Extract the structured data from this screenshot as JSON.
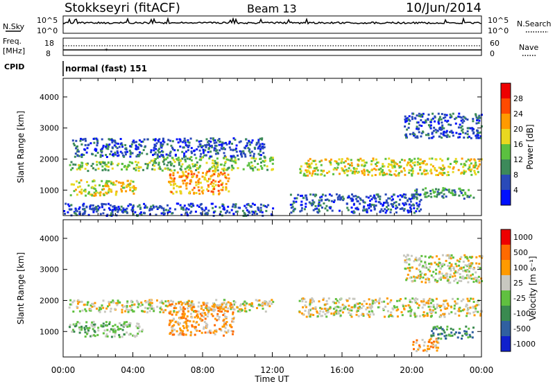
{
  "header": {
    "station": "Stokkseyri (fitACF)",
    "beam": "Beam 13",
    "date": "10/Jun/2014"
  },
  "strip_labels": {
    "nsky": "N.Sky",
    "nsky_ticks": [
      "10^5",
      "10^0"
    ],
    "nsearch": "N.Search",
    "nsearch_ticks": [
      "10^5",
      "10^0"
    ],
    "freq_line1": "Freq.",
    "freq_line2": "[MHz]",
    "freq_ticks": [
      "18",
      "8"
    ],
    "nave": "Nave",
    "nave_ticks": [
      "60",
      "0"
    ],
    "cpid": "CPID",
    "cpid_value": "normal (fast) 151"
  },
  "chart_data": [
    {
      "type": "heatmap",
      "title": "",
      "xlabel": "Time UT",
      "ylabel": "Slant Range [km]",
      "x_ticks": [
        "00:00",
        "04:00",
        "08:00",
        "12:00",
        "16:00",
        "20:00",
        "00:00"
      ],
      "xlim_hours": [
        0,
        24
      ],
      "y_ticks": [
        1000,
        2000,
        3000,
        4000
      ],
      "ylim": [
        180,
        4600
      ],
      "colorbar": {
        "label": "Power [dB]",
        "ticks": [
          "4",
          "8",
          "12",
          "16",
          "20",
          "24",
          "28"
        ],
        "colors": [
          "#0010ff",
          "#2a4ab8",
          "#3d8a5a",
          "#5bc040",
          "#e8d820",
          "#ff9a00",
          "#ff4a00",
          "#ee0000"
        ]
      },
      "regions": [
        {
          "t": [
            0.3,
            5.0
          ],
          "r": [
            1650,
            1950
          ],
          "level": 3
        },
        {
          "t": [
            0.3,
            4.2
          ],
          "r": [
            850,
            1350
          ],
          "level": 4
        },
        {
          "t": [
            5.0,
            12.0
          ],
          "r": [
            1650,
            2100
          ],
          "level": 3
        },
        {
          "t": [
            6.0,
            9.5
          ],
          "r": [
            900,
            1650
          ],
          "level": 5
        },
        {
          "t": [
            13.5,
            24.0
          ],
          "r": [
            1500,
            2050
          ],
          "level": 4
        },
        {
          "t": [
            19.5,
            24.0
          ],
          "r": [
            2700,
            3500
          ],
          "level": 1
        },
        {
          "t": [
            0.0,
            12.5
          ],
          "r": [
            200,
            600
          ],
          "level": 1
        },
        {
          "t": [
            20.0,
            23.5
          ],
          "r": [
            750,
            1100
          ],
          "level": 2
        },
        {
          "t": [
            0.5,
            11.5
          ],
          "r": [
            2100,
            2700
          ],
          "level": 1
        },
        {
          "t": [
            13.0,
            20.5
          ],
          "r": [
            300,
            900
          ],
          "level": 1
        }
      ]
    },
    {
      "type": "heatmap",
      "title": "",
      "xlabel": "Time UT",
      "ylabel": "Slant Range [km]",
      "x_ticks": [
        "00:00",
        "04:00",
        "08:00",
        "12:00",
        "16:00",
        "20:00",
        "00:00"
      ],
      "xlim_hours": [
        0,
        24
      ],
      "y_ticks": [
        1000,
        2000,
        3000,
        4000
      ],
      "ylim": [
        180,
        4600
      ],
      "colorbar": {
        "label": "Velocity [m s⁻¹]",
        "ticks": [
          "1000",
          "500",
          "100",
          "25",
          "-25",
          "-100",
          "-500",
          "-1000"
        ],
        "colors": [
          "#1020cc",
          "#3060a0",
          "#3a8a50",
          "#60c040",
          "#c8c8c0",
          "#ff9a00",
          "#ff6a00",
          "#ee0000"
        ]
      },
      "regions": [
        {
          "t": [
            0.3,
            12.0
          ],
          "r": [
            1650,
            2050
          ],
          "level": 4
        },
        {
          "t": [
            0.3,
            4.5
          ],
          "r": [
            850,
            1350
          ],
          "level": 3
        },
        {
          "t": [
            6.0,
            9.8
          ],
          "r": [
            900,
            1950
          ],
          "level": 5
        },
        {
          "t": [
            13.5,
            24.0
          ],
          "r": [
            1500,
            2100
          ],
          "level": 4
        },
        {
          "t": [
            19.5,
            24.0
          ],
          "r": [
            2600,
            3500
          ],
          "level": 4
        },
        {
          "t": [
            20.0,
            21.5
          ],
          "r": [
            400,
            800
          ],
          "level": 5
        },
        {
          "t": [
            21.0,
            23.5
          ],
          "r": [
            800,
            1200
          ],
          "level": 2
        }
      ]
    }
  ]
}
